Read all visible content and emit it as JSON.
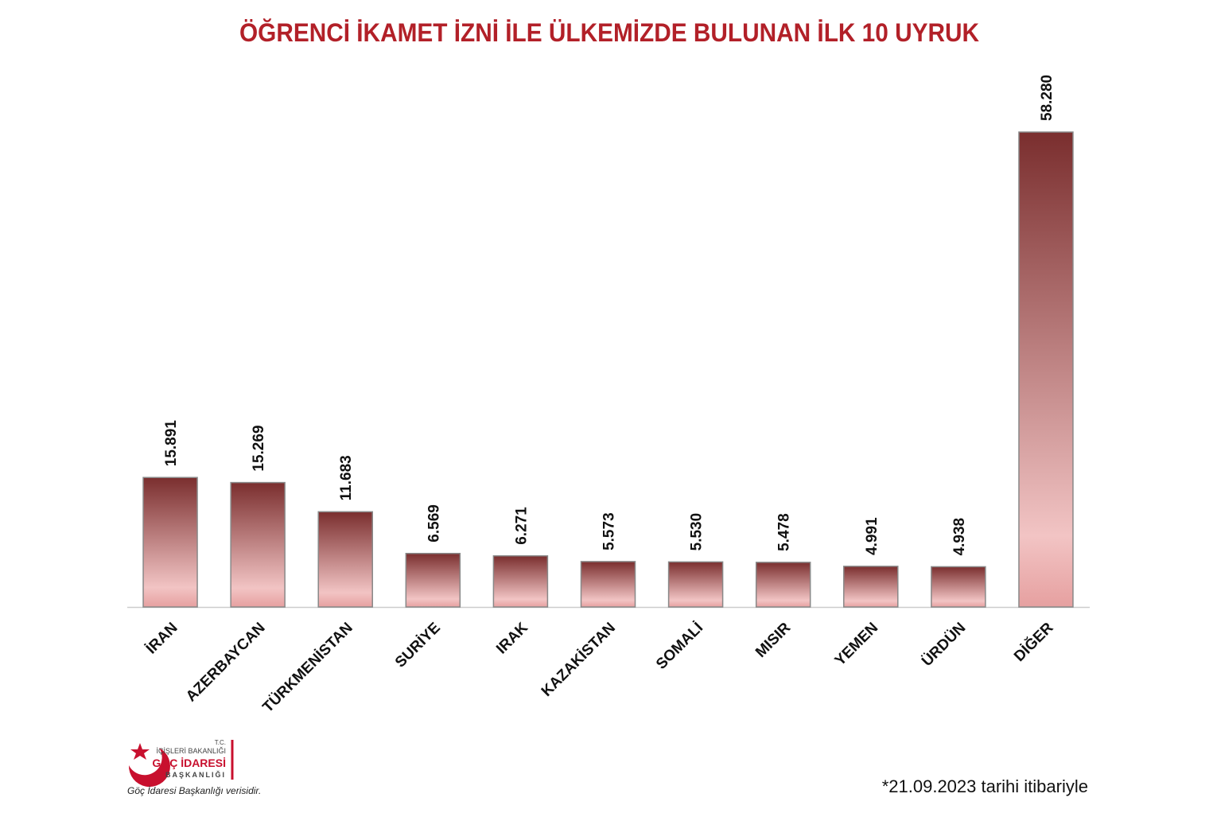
{
  "chart_data": {
    "type": "bar",
    "title": "ÖĞRENCİ İKAMET İZNİ İLE ÜLKEMİZDE BULUNAN İLK 10 UYRUK",
    "categories": [
      "İRAN",
      "AZERBAYCAN",
      "TÜRKMENİSTAN",
      "SURİYE",
      "IRAK",
      "KAZAKİSTAN",
      "SOMALİ",
      "MISIR",
      "YEMEN",
      "ÜRDÜN",
      "DİĞER"
    ],
    "values": [
      15891,
      15269,
      11683,
      6569,
      6271,
      5573,
      5530,
      5478,
      4991,
      4938,
      58280
    ],
    "value_labels": [
      "15.891",
      "15.269",
      "11.683",
      "6.569",
      "6.271",
      "5.573",
      "5.530",
      "5.478",
      "4.991",
      "4.938",
      "58.280"
    ],
    "color": "#7a2e2e"
  },
  "logo": {
    "line1": "T.C.",
    "line2": "İÇİŞLERİ BAKANLIĞI",
    "line3": "GÖÇ İDARESİ",
    "line4": "BAŞKANLIĞI"
  },
  "source": "Göç İdaresi Başkanlığı verisidir.",
  "note": "*21.09.2023 tarihi itibariyle"
}
